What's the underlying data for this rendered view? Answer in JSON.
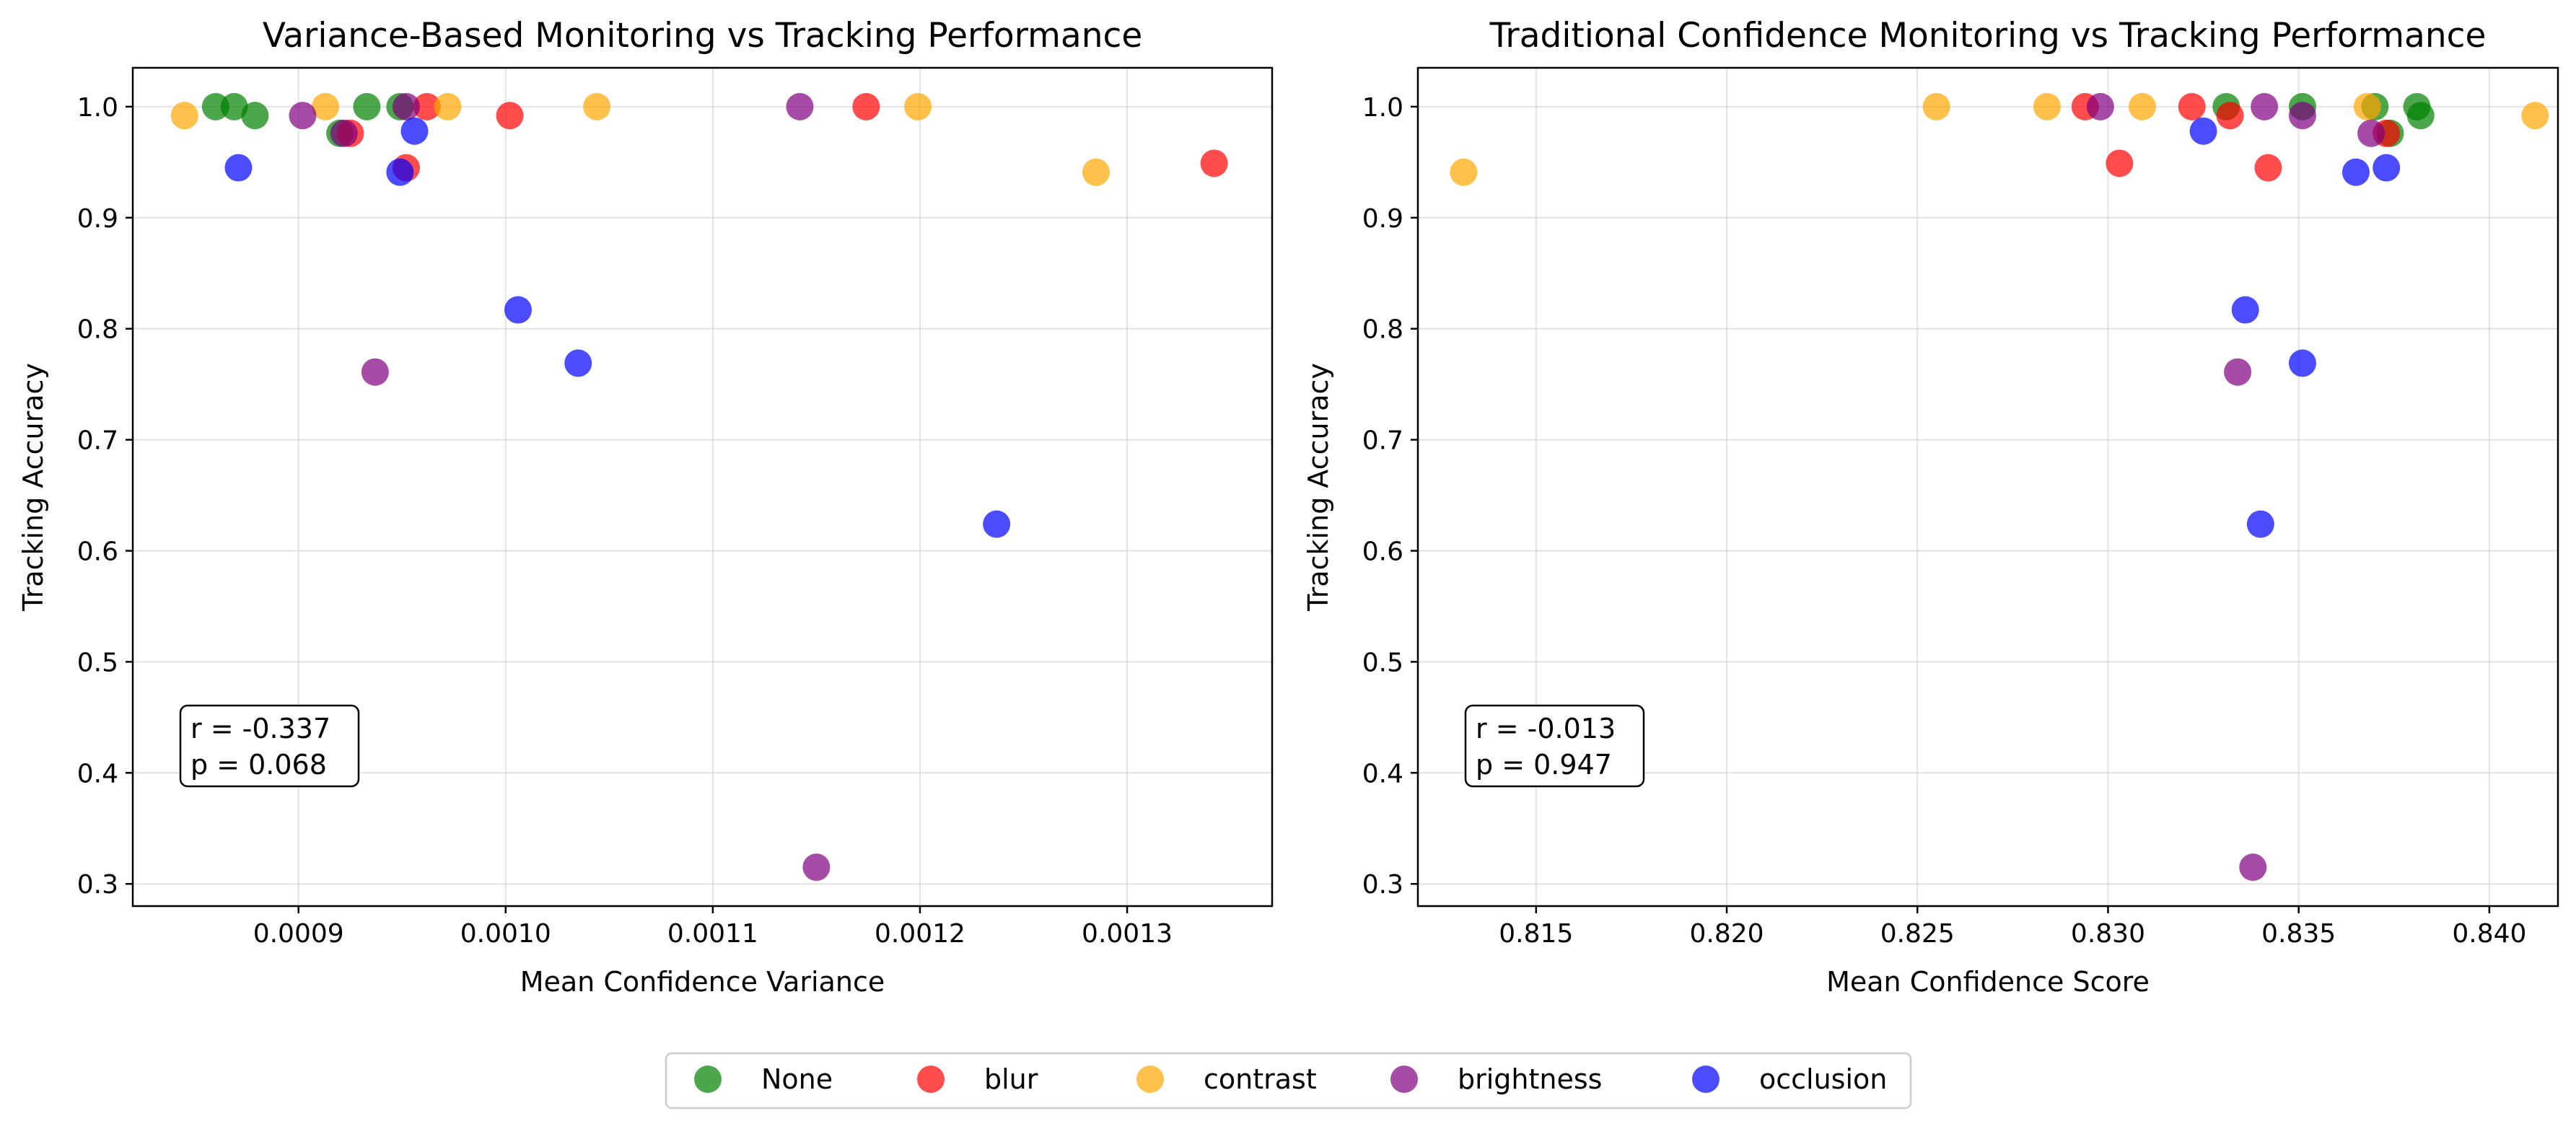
{
  "chart_data": [
    {
      "type": "scatter",
      "title": "Variance-Based Monitoring vs Tracking Performance",
      "xlabel": "Mean Confidence Variance",
      "ylabel": "Tracking Accuracy",
      "xlim": [
        0.00082,
        0.00137
      ],
      "ylim": [
        0.28,
        1.035
      ],
      "xticks": [
        "0.0009",
        "0.0010",
        "0.0011",
        "0.0012",
        "0.0013"
      ],
      "xtick_values": [
        0.0009,
        0.001,
        0.0011,
        0.0012,
        0.0013
      ],
      "yticks": [
        "0.3",
        "0.4",
        "0.5",
        "0.6",
        "0.7",
        "0.8",
        "0.9",
        "1.0"
      ],
      "ytick_values": [
        0.3,
        0.4,
        0.5,
        0.6,
        0.7,
        0.8,
        0.9,
        1.0
      ],
      "grid": true,
      "stats": [
        "r = -0.337",
        "p = 0.068"
      ],
      "series": [
        {
          "name": "None",
          "points": [
            [
              0.00086,
              1.0
            ],
            [
              0.000869,
              1.0
            ],
            [
              0.000879,
              0.992
            ],
            [
              0.00092,
              0.976
            ],
            [
              0.000933,
              1.0
            ],
            [
              0.000949,
              1.0
            ]
          ]
        },
        {
          "name": "blur",
          "points": [
            [
              0.000925,
              0.976
            ],
            [
              0.000952,
              0.945
            ],
            [
              0.000962,
              1.0
            ],
            [
              0.001002,
              0.992
            ],
            [
              0.001174,
              1.0
            ],
            [
              0.001342,
              0.949
            ]
          ]
        },
        {
          "name": "contrast",
          "points": [
            [
              0.000845,
              0.992
            ],
            [
              0.000913,
              1.0
            ],
            [
              0.000972,
              1.0
            ],
            [
              0.001044,
              1.0
            ],
            [
              0.001199,
              1.0
            ],
            [
              0.001285,
              0.941
            ]
          ]
        },
        {
          "name": "brightness",
          "points": [
            [
              0.000902,
              0.992
            ],
            [
              0.000922,
              0.976
            ],
            [
              0.000937,
              0.761
            ],
            [
              0.000952,
              1.0
            ],
            [
              0.001142,
              1.0
            ],
            [
              0.00115,
              0.315
            ]
          ]
        },
        {
          "name": "occlusion",
          "points": [
            [
              0.000871,
              0.945
            ],
            [
              0.000949,
              0.941
            ],
            [
              0.000956,
              0.978
            ],
            [
              0.001006,
              0.817
            ],
            [
              0.001035,
              0.769
            ],
            [
              0.001237,
              0.624
            ]
          ]
        }
      ]
    },
    {
      "type": "scatter",
      "title": "Traditional Confidence Monitoring vs Tracking Performance",
      "xlabel": "Mean Confidence Score",
      "ylabel": "Tracking Accuracy",
      "xlim": [
        0.8119,
        0.8418
      ],
      "ylim": [
        0.28,
        1.035
      ],
      "xticks": [
        "0.815",
        "0.820",
        "0.825",
        "0.830",
        "0.835",
        "0.840"
      ],
      "xtick_values": [
        0.815,
        0.82,
        0.825,
        0.83,
        0.835,
        0.84
      ],
      "yticks": [
        "0.3",
        "0.4",
        "0.5",
        "0.6",
        "0.7",
        "0.8",
        "0.9",
        "1.0"
      ],
      "ytick_values": [
        0.3,
        0.4,
        0.5,
        0.6,
        0.7,
        0.8,
        0.9,
        1.0
      ],
      "grid": true,
      "stats": [
        "r = -0.013",
        "p = 0.947"
      ],
      "series": [
        {
          "name": "None",
          "points": [
            [
              0.8331,
              1.0
            ],
            [
              0.8351,
              1.0
            ],
            [
              0.837,
              1.0
            ],
            [
              0.8374,
              0.976
            ],
            [
              0.8381,
              1.0
            ],
            [
              0.8382,
              0.992
            ]
          ]
        },
        {
          "name": "blur",
          "points": [
            [
              0.8294,
              1.0
            ],
            [
              0.8303,
              0.949
            ],
            [
              0.8322,
              1.0
            ],
            [
              0.8332,
              0.992
            ],
            [
              0.8342,
              0.945
            ],
            [
              0.8373,
              0.976
            ]
          ]
        },
        {
          "name": "contrast",
          "points": [
            [
              0.8131,
              0.941
            ],
            [
              0.8255,
              1.0
            ],
            [
              0.8284,
              1.0
            ],
            [
              0.8309,
              1.0
            ],
            [
              0.8368,
              1.0
            ],
            [
              0.8412,
              0.992
            ]
          ]
        },
        {
          "name": "brightness",
          "points": [
            [
              0.8298,
              1.0
            ],
            [
              0.8334,
              0.761
            ],
            [
              0.8338,
              0.315
            ],
            [
              0.8341,
              1.0
            ],
            [
              0.8351,
              0.992
            ],
            [
              0.8369,
              0.976
            ]
          ]
        },
        {
          "name": "occlusion",
          "points": [
            [
              0.8325,
              0.978
            ],
            [
              0.8336,
              0.817
            ],
            [
              0.834,
              0.624
            ],
            [
              0.8351,
              0.769
            ],
            [
              0.8365,
              0.941
            ],
            [
              0.8373,
              0.945
            ]
          ]
        }
      ]
    }
  ],
  "legend": [
    {
      "label": "None",
      "color": "#008000"
    },
    {
      "label": "blur",
      "color": "#ff0000"
    },
    {
      "label": "contrast",
      "color": "#ffa500"
    },
    {
      "label": "brightness",
      "color": "#800080"
    },
    {
      "label": "occlusion",
      "color": "#0000ff"
    }
  ]
}
